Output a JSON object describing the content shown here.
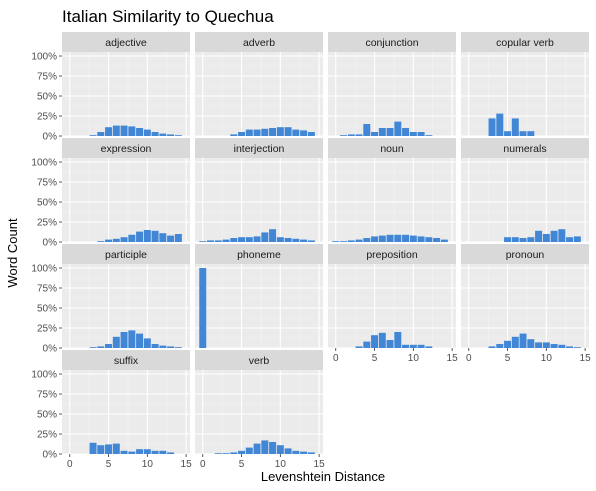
{
  "chart_data": {
    "type": "bar",
    "title": "Italian Similarity to Quechua",
    "xlabel": "Levenshtein Distance",
    "ylabel": "Word Count",
    "xlim": [
      -1,
      15.5
    ],
    "ylim": [
      0,
      1.05
    ],
    "x_ticks": [
      0,
      5,
      10,
      15
    ],
    "x_tick_labels": [
      "0",
      "5",
      "10",
      "15"
    ],
    "y_ticks": [
      0,
      0.25,
      0.5,
      0.75,
      1.0
    ],
    "y_tick_labels": [
      "0%",
      "25%",
      "50%",
      "75%",
      "100%"
    ],
    "bar_color": "#4287d6",
    "panel_background": "#ebebeb",
    "strip_background": "#d9d9d9",
    "grid": true,
    "layout": "facet_wrap 4 columns",
    "facets": [
      {
        "name": "adjective",
        "x": [
          3,
          4,
          5,
          6,
          7,
          8,
          9,
          10,
          11,
          12,
          13,
          14
        ],
        "y": [
          0.01,
          0.05,
          0.11,
          0.13,
          0.13,
          0.12,
          0.1,
          0.08,
          0.05,
          0.03,
          0.02,
          0.01
        ]
      },
      {
        "name": "adverb",
        "x": [
          4,
          5,
          6,
          7,
          8,
          9,
          10,
          11,
          12,
          13,
          14
        ],
        "y": [
          0.02,
          0.05,
          0.08,
          0.08,
          0.09,
          0.1,
          0.11,
          0.11,
          0.08,
          0.07,
          0.05
        ]
      },
      {
        "name": "conjunction",
        "x": [
          1,
          2,
          3,
          4,
          5,
          6,
          7,
          8,
          9,
          10,
          11,
          12
        ],
        "y": [
          0.01,
          0.02,
          0.02,
          0.15,
          0.05,
          0.1,
          0.1,
          0.18,
          0.1,
          0.05,
          0.05,
          0.01
        ]
      },
      {
        "name": "copular verb",
        "x": [
          3,
          4,
          5,
          6,
          7,
          8
        ],
        "y": [
          0.22,
          0.28,
          0.06,
          0.22,
          0.06,
          0.06
        ]
      },
      {
        "name": "expression",
        "x": [
          4,
          5,
          6,
          7,
          8,
          9,
          10,
          11,
          12,
          13,
          14
        ],
        "y": [
          0.01,
          0.03,
          0.04,
          0.06,
          0.09,
          0.13,
          0.15,
          0.14,
          0.11,
          0.08,
          0.1
        ]
      },
      {
        "name": "interjection",
        "x": [
          0,
          1,
          2,
          3,
          4,
          5,
          6,
          7,
          8,
          9,
          10,
          11,
          12,
          13,
          14
        ],
        "y": [
          0.01,
          0.02,
          0.02,
          0.03,
          0.05,
          0.06,
          0.06,
          0.07,
          0.12,
          0.16,
          0.06,
          0.05,
          0.04,
          0.03,
          0.02
        ]
      },
      {
        "name": "noun",
        "x": [
          0,
          1,
          2,
          3,
          4,
          5,
          6,
          7,
          8,
          9,
          10,
          11,
          12,
          13,
          14
        ],
        "y": [
          0.01,
          0.01,
          0.02,
          0.03,
          0.05,
          0.07,
          0.08,
          0.09,
          0.09,
          0.09,
          0.08,
          0.07,
          0.06,
          0.05,
          0.03
        ]
      },
      {
        "name": "numerals",
        "x": [
          5,
          6,
          7,
          8,
          9,
          10,
          11,
          12,
          13,
          14
        ],
        "y": [
          0.06,
          0.06,
          0.05,
          0.06,
          0.14,
          0.1,
          0.14,
          0.16,
          0.06,
          0.07
        ]
      },
      {
        "name": "participle",
        "x": [
          3,
          4,
          5,
          6,
          7,
          8,
          9,
          10,
          11,
          12,
          13,
          14
        ],
        "y": [
          0.01,
          0.02,
          0.05,
          0.14,
          0.2,
          0.22,
          0.18,
          0.12,
          0.05,
          0.03,
          0.02,
          0.01
        ]
      },
      {
        "name": "phoneme",
        "x": [
          0
        ],
        "y": [
          1.0
        ]
      },
      {
        "name": "preposition",
        "x": [
          3,
          4,
          5,
          6,
          7,
          8,
          9,
          10,
          11,
          12
        ],
        "y": [
          0.02,
          0.08,
          0.16,
          0.19,
          0.1,
          0.2,
          0.04,
          0.04,
          0.04,
          0.02
        ]
      },
      {
        "name": "pronoun",
        "x": [
          3,
          4,
          5,
          6,
          7,
          8,
          9,
          10,
          11,
          12,
          13,
          14
        ],
        "y": [
          0.02,
          0.05,
          0.09,
          0.14,
          0.18,
          0.11,
          0.07,
          0.07,
          0.05,
          0.04,
          0.02,
          0.01
        ]
      },
      {
        "name": "suffix",
        "x": [
          3,
          4,
          5,
          6,
          7,
          8,
          9,
          10,
          11,
          12,
          13
        ],
        "y": [
          0.14,
          0.11,
          0.12,
          0.13,
          0.04,
          0.03,
          0.06,
          0.06,
          0.04,
          0.04,
          0.02
        ]
      },
      {
        "name": "verb",
        "x": [
          2,
          3,
          4,
          5,
          6,
          7,
          8,
          9,
          10,
          11,
          12,
          13,
          14
        ],
        "y": [
          0.01,
          0.01,
          0.02,
          0.04,
          0.08,
          0.13,
          0.17,
          0.15,
          0.11,
          0.07,
          0.04,
          0.03,
          0.02
        ]
      }
    ]
  }
}
